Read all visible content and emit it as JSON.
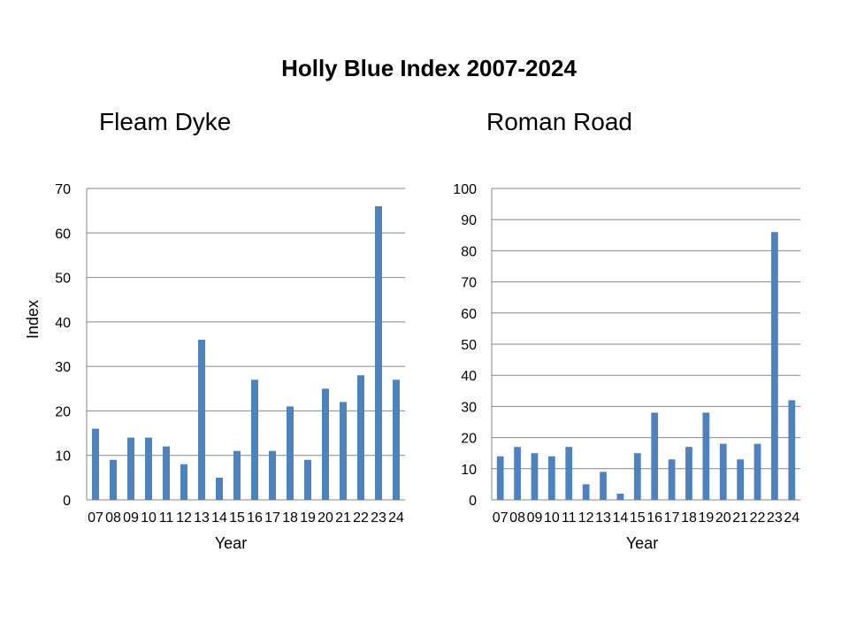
{
  "title": "Holly Blue Index 2007-2024",
  "chart_data": [
    {
      "type": "bar",
      "title": "Fleam Dyke",
      "xlabel": "Year",
      "ylabel": "Index",
      "ylim": [
        0,
        70
      ],
      "yticks": [
        0,
        10,
        20,
        30,
        40,
        50,
        60,
        70
      ],
      "grid": true,
      "color": "#4F81BD",
      "categories": [
        "07",
        "08",
        "09",
        "10",
        "11",
        "12",
        "13",
        "14",
        "15",
        "16",
        "17",
        "18",
        "19",
        "20",
        "21",
        "22",
        "23",
        "24"
      ],
      "values": [
        16,
        9,
        14,
        14,
        12,
        8,
        36,
        5,
        11,
        27,
        11,
        21,
        9,
        25,
        22,
        28,
        66,
        27
      ]
    },
    {
      "type": "bar",
      "title": "Roman Road",
      "xlabel": "Year",
      "ylabel": "",
      "ylim": [
        0,
        100
      ],
      "yticks": [
        0,
        10,
        20,
        30,
        40,
        50,
        60,
        70,
        80,
        90,
        100
      ],
      "grid": true,
      "color": "#4F81BD",
      "categories": [
        "07",
        "08",
        "09",
        "10",
        "11",
        "12",
        "13",
        "14",
        "15",
        "16",
        "17",
        "18",
        "19",
        "20",
        "21",
        "22",
        "23",
        "24"
      ],
      "values": [
        14,
        17,
        15,
        14,
        17,
        5,
        9,
        2,
        15,
        28,
        13,
        17,
        28,
        18,
        13,
        18,
        86,
        32
      ]
    }
  ]
}
